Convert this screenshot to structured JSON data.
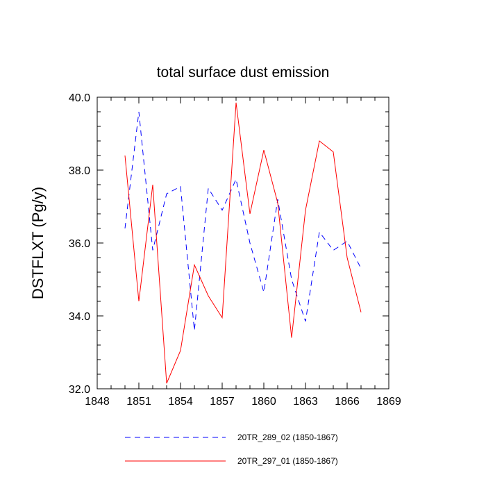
{
  "chart_data": {
    "type": "line",
    "title": "total surface dust emission",
    "xlabel": "",
    "ylabel": "DSTFLXT  (Pg/y)",
    "xlim": [
      1848,
      1869
    ],
    "ylim": [
      32.0,
      40.0
    ],
    "x_ticks": [
      1848,
      1851,
      1854,
      1857,
      1860,
      1863,
      1866,
      1869
    ],
    "y_ticks": [
      32.0,
      34.0,
      36.0,
      38.0,
      40.0
    ],
    "y_tick_labels": [
      "32.0",
      "34.0",
      "36.0",
      "38.0",
      "40.0"
    ],
    "x": [
      1850,
      1851,
      1852,
      1853,
      1854,
      1855,
      1856,
      1857,
      1858,
      1859,
      1860,
      1861,
      1862,
      1863,
      1864,
      1865,
      1866,
      1867
    ],
    "series": [
      {
        "name": "20TR_289_02 (1850-1867)",
        "color": "#0000ff",
        "style": "dashed",
        "values": [
          36.4,
          39.6,
          35.8,
          37.35,
          37.55,
          33.6,
          37.5,
          36.9,
          37.75,
          36.0,
          34.65,
          37.2,
          35.0,
          33.85,
          36.3,
          35.8,
          36.05,
          35.3
        ]
      },
      {
        "name": "20TR_297_01 (1850-1867)",
        "color": "#ff0000",
        "style": "solid",
        "values": [
          38.4,
          34.4,
          37.6,
          32.15,
          33.05,
          35.4,
          34.55,
          33.95,
          39.85,
          36.8,
          38.55,
          37.1,
          33.4,
          36.9,
          38.8,
          38.5,
          35.6,
          34.1
        ]
      }
    ],
    "grid": false,
    "legend_position": "bottom"
  }
}
